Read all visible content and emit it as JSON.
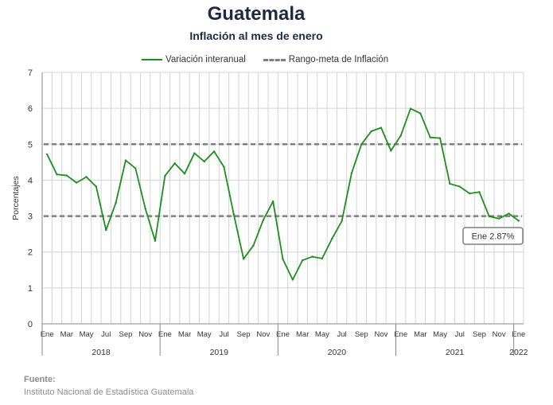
{
  "header": {
    "title": "Guatemala",
    "subtitle": "Inflación al mes de enero"
  },
  "legend": {
    "series_label": "Variación interanual",
    "target_label": "Rango-meta de Inflación"
  },
  "source": {
    "label": "Fuente:",
    "text": "Instituto Nacional de Estadística Guatemala"
  },
  "colors": {
    "series": "#1e8e1e",
    "target": "#7f7f7f",
    "grid": "#d4d4d4",
    "title": "#1c2a44"
  },
  "chart_data": {
    "type": "line",
    "title": "Inflación al mes de enero",
    "ylabel": "Porcentajes",
    "ylim": [
      0,
      7
    ],
    "yticks": [
      0,
      1,
      2,
      3,
      4,
      5,
      6,
      7
    ],
    "grid": true,
    "legend_position": "top-center",
    "month_tick_labels": [
      "Ene",
      "Mar",
      "May",
      "Jul",
      "Sep",
      "Nov",
      "Ene",
      "Mar",
      "May",
      "Jul",
      "Sep",
      "Nov",
      "Ene",
      "Mar",
      "May",
      "Jul",
      "Sep",
      "Nov",
      "Ene",
      "Mar",
      "May",
      "Jul",
      "Sep",
      "Nov",
      "Ene"
    ],
    "year_labels": [
      "2018",
      "2019",
      "2020",
      "2021",
      "2022"
    ],
    "x": [
      "2018-01",
      "2018-02",
      "2018-03",
      "2018-04",
      "2018-05",
      "2018-06",
      "2018-07",
      "2018-08",
      "2018-09",
      "2018-10",
      "2018-11",
      "2018-12",
      "2019-01",
      "2019-02",
      "2019-03",
      "2019-04",
      "2019-05",
      "2019-06",
      "2019-07",
      "2019-08",
      "2019-09",
      "2019-10",
      "2019-11",
      "2019-12",
      "2020-01",
      "2020-02",
      "2020-03",
      "2020-04",
      "2020-05",
      "2020-06",
      "2020-07",
      "2020-08",
      "2020-09",
      "2020-10",
      "2020-11",
      "2020-12",
      "2021-01",
      "2021-02",
      "2021-03",
      "2021-04",
      "2021-05",
      "2021-06",
      "2021-07",
      "2021-08",
      "2021-09",
      "2021-10",
      "2021-11",
      "2021-12",
      "2022-01"
    ],
    "series": [
      {
        "name": "Variación interanual",
        "values": [
          4.72,
          4.16,
          4.13,
          3.93,
          4.09,
          3.82,
          2.61,
          3.37,
          4.55,
          4.33,
          3.21,
          2.31,
          4.12,
          4.47,
          4.18,
          4.75,
          4.52,
          4.8,
          4.37,
          3.05,
          1.81,
          2.18,
          2.89,
          3.41,
          1.8,
          1.23,
          1.77,
          1.87,
          1.82,
          2.37,
          2.86,
          4.2,
          5.0,
          5.36,
          5.46,
          4.82,
          5.24,
          5.99,
          5.86,
          5.19,
          5.17,
          3.9,
          3.82,
          3.63,
          3.67,
          2.99,
          2.93,
          3.07,
          2.87
        ]
      }
    ],
    "target_range": [
      3,
      5
    ],
    "annotations": [
      {
        "label": "Ene 2.87%",
        "x": "2022-01",
        "y": 2.87
      }
    ]
  }
}
